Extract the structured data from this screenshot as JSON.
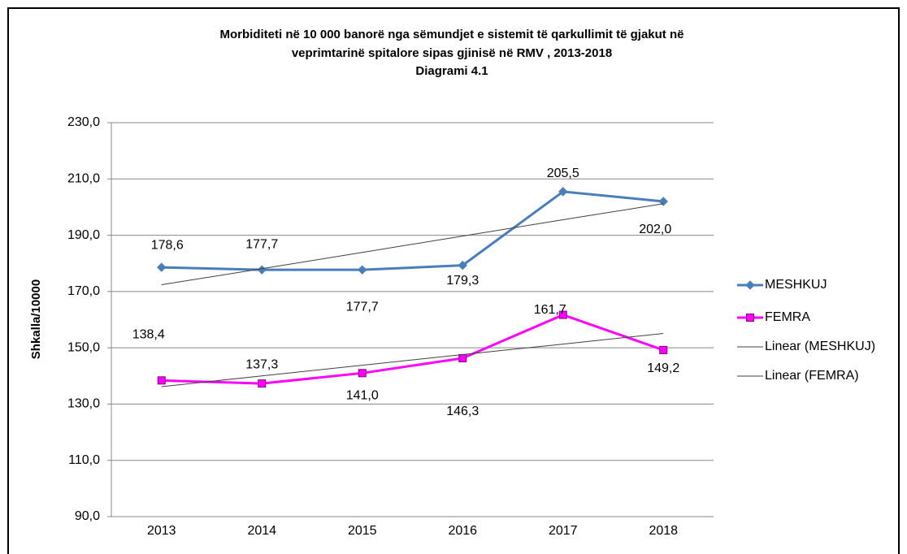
{
  "chart_data": {
    "type": "line",
    "title": "Morbiditeti në 10 000 banorë nga sëmundjet e sistemit të qarkullimit të gjakut në",
    "subtitle": "veprimtarinë spitalore sipas gjinisë në RMV , 2013-2018",
    "caption": "Diagrami 4.1",
    "y_label": "Shkalla/10000",
    "categories": [
      "2013",
      "2014",
      "2015",
      "2016",
      "2017",
      "2018"
    ],
    "series": [
      {
        "name": "MESHKUJ",
        "color": "#4a7ebb",
        "marker": "diamond",
        "values": [
          178.6,
          177.7,
          177.7,
          179.3,
          205.5,
          202.0
        ],
        "value_labels": [
          "178,6",
          "177,7",
          "177,7",
          "179,3",
          "205,5",
          "202,0"
        ]
      },
      {
        "name": "FEMRA",
        "color": "#ff00ff",
        "marker": "square",
        "values": [
          138.4,
          137.3,
          141.0,
          146.3,
          161.7,
          149.2
        ],
        "value_labels": [
          "138,4",
          "137,3",
          "141,0",
          "146,3",
          "161,7",
          "149,2"
        ]
      },
      {
        "name": "Linear (MESHKUJ)",
        "color": "#404040",
        "marker": "none",
        "values": [
          172.4,
          178.1,
          183.9,
          189.7,
          195.5,
          201.2
        ]
      },
      {
        "name": "Linear (FEMRA)",
        "color": "#404040",
        "marker": "none",
        "values": [
          136.2,
          140.0,
          143.8,
          147.6,
          151.3,
          155.1
        ]
      }
    ],
    "ylim": [
      90,
      230
    ],
    "yticks": [
      {
        "value": 90,
        "label": "90,0"
      },
      {
        "value": 110,
        "label": "110,0"
      },
      {
        "value": 130,
        "label": "130,0"
      },
      {
        "value": 150,
        "label": "150,0"
      },
      {
        "value": 170,
        "label": "170,0"
      },
      {
        "value": 190,
        "label": "190,0"
      },
      {
        "value": 210,
        "label": "210,0"
      },
      {
        "value": 230,
        "label": "230,0"
      }
    ],
    "grid": true,
    "legend": "right"
  }
}
